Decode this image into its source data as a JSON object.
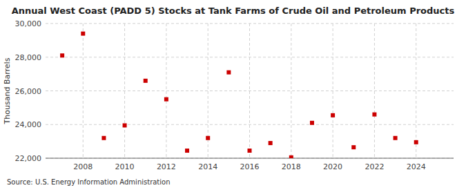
{
  "chart_data": {
    "type": "scatter",
    "title": "Annual West Coast (PADD 5) Stocks at Tank Farms of Crude Oil and Petroleum Products",
    "ylabel": "Thousand Barrels",
    "source": "Source: U.S. Energy Information Administration",
    "x": [
      2007,
      2008,
      2009,
      2010,
      2011,
      2012,
      2013,
      2014,
      2015,
      2016,
      2017,
      2018,
      2019,
      2020,
      2021,
      2022,
      2023,
      2024
    ],
    "values": [
      28100,
      29400,
      23200,
      23950,
      26600,
      25500,
      22450,
      23200,
      27100,
      22450,
      22900,
      22050,
      24100,
      24550,
      22650,
      24600,
      23200,
      22950
    ],
    "color": "#cc0000",
    "marker": "square",
    "xlim": [
      2006.2,
      2025.8
    ],
    "xticks": [
      2008,
      2010,
      2012,
      2014,
      2016,
      2018,
      2020,
      2022,
      2024
    ],
    "ylim": [
      22000,
      30000
    ],
    "yticks": [
      {
        "value": 22000,
        "label": "22,000"
      },
      {
        "value": 24000,
        "label": "24,000"
      },
      {
        "value": 26000,
        "label": "26,000"
      },
      {
        "value": 28000,
        "label": "28,000"
      },
      {
        "value": 30000,
        "label": "30,000"
      }
    ],
    "grid": true
  }
}
